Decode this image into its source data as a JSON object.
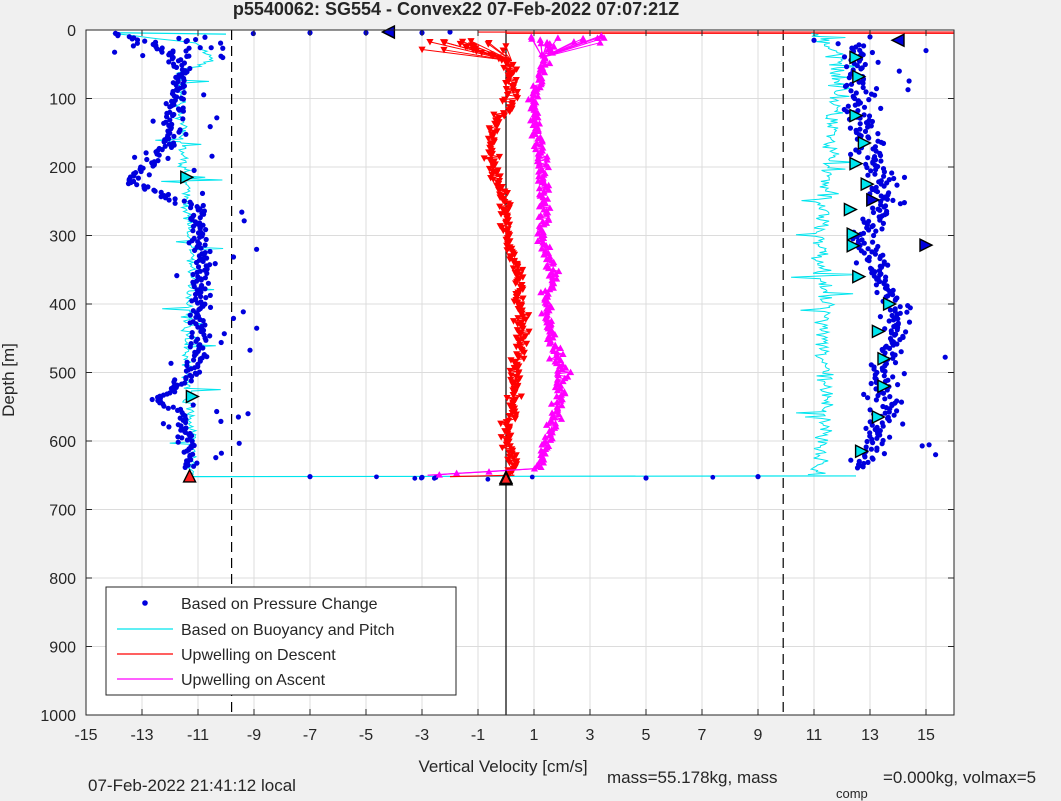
{
  "figure": {
    "title": "p5540062: SG554 - Convex22 07-Feb-2022 07:07:21Z",
    "footer_left": "07-Feb-2022 21:41:12 local",
    "footer_right_part1": "mass=55.178kg, mass",
    "footer_right_sub": "comp",
    "footer_right_part2": "=0.000kg, volmax=5"
  },
  "colors": {
    "pressure": "#0000dd",
    "buoyancy": "#00e5ee",
    "descent": "#ff0000",
    "ascent": "#ff00ff",
    "grid": "#dcdcdc",
    "axes_bg": "#ffffff",
    "figure_bg": "#f0f0f0"
  },
  "chart_data": {
    "type": "scatter",
    "title": "p5540062: SG554 - Convex22 07-Feb-2022 07:07:21Z",
    "xlabel": "Vertical Velocity [cm/s]",
    "ylabel": "Depth [m]",
    "xlim": [
      -15,
      16
    ],
    "ylim": [
      0,
      1000
    ],
    "y_reversed": true,
    "grid": true,
    "xticks": [
      -15,
      -13,
      -11,
      -9,
      -7,
      -5,
      -3,
      -1,
      1,
      3,
      5,
      7,
      9,
      11,
      13,
      15
    ],
    "yticks": [
      0,
      100,
      200,
      300,
      400,
      500,
      600,
      700,
      800,
      900,
      1000
    ],
    "legend": {
      "placement": "bottom-left",
      "entries": [
        "Based on Pressure Change",
        "Based on Buoyancy and Pitch",
        "Upwelling on Descent",
        "Upwelling on Ascent"
      ]
    },
    "reference_lines": {
      "dashed_x": [
        -9.8,
        9.9
      ],
      "solid_x": [
        0
      ]
    },
    "series": [
      {
        "name": "Based on Pressure Change",
        "style": "dots",
        "descent_points": [
          [
            -14,
            5
          ],
          [
            -12,
            30
          ],
          [
            -11.5,
            60
          ],
          [
            -11.8,
            100
          ],
          [
            -12,
            150
          ],
          [
            -12.2,
            180
          ],
          [
            -13.5,
            220
          ],
          [
            -11,
            260
          ],
          [
            -11,
            300
          ],
          [
            -10.9,
            350
          ],
          [
            -11,
            400
          ],
          [
            -10.9,
            450
          ],
          [
            -11.1,
            500
          ],
          [
            -12.5,
            540
          ],
          [
            -11.5,
            560
          ],
          [
            -11.4,
            600
          ],
          [
            -11.3,
            640
          ]
        ],
        "ascent_points": [
          [
            12.5,
            20
          ],
          [
            12.6,
            60
          ],
          [
            12.6,
            100
          ],
          [
            12.8,
            150
          ],
          [
            13.2,
            200
          ],
          [
            13.6,
            250
          ],
          [
            12.8,
            300
          ],
          [
            13.2,
            350
          ],
          [
            13.8,
            400
          ],
          [
            13.8,
            450
          ],
          [
            13.4,
            500
          ],
          [
            13.5,
            550
          ],
          [
            13.2,
            600
          ],
          [
            12.8,
            640
          ]
        ],
        "bottom_points": [
          [
            -7,
            652
          ],
          [
            -3,
            653
          ],
          [
            0,
            655
          ],
          [
            5,
            654
          ],
          [
            9,
            652
          ]
        ]
      },
      {
        "name": "Based on Buoyancy and Pitch",
        "style": "line",
        "descent_points": [
          [
            -14,
            5
          ],
          [
            -11,
            20
          ],
          [
            -10.5,
            45
          ],
          [
            -11.6,
            60
          ],
          [
            -11.6,
            100
          ],
          [
            -11.6,
            150
          ],
          [
            -11.5,
            200
          ],
          [
            -11.4,
            250
          ],
          [
            -11.3,
            300
          ],
          [
            -11.2,
            350
          ],
          [
            -11.3,
            400
          ],
          [
            -11.4,
            450
          ],
          [
            -11.4,
            500
          ],
          [
            -11.3,
            550
          ],
          [
            -11.2,
            600
          ],
          [
            -11.2,
            650
          ]
        ],
        "ascent_points": [
          [
            11,
            650
          ],
          [
            11.4,
            600
          ],
          [
            11.4,
            550
          ],
          [
            11.3,
            500
          ],
          [
            11.4,
            450
          ],
          [
            11.4,
            400
          ],
          [
            11.3,
            350
          ],
          [
            11.2,
            300
          ],
          [
            11.3,
            250
          ],
          [
            11.5,
            200
          ],
          [
            11.6,
            150
          ],
          [
            11.8,
            100
          ],
          [
            12,
            60
          ],
          [
            11.5,
            20
          ],
          [
            11,
            5
          ]
        ],
        "bottom_points": [
          [
            -11.2,
            652
          ],
          [
            12.5,
            651
          ]
        ]
      },
      {
        "name": "Upwelling on Descent",
        "style": "line-triangle-down",
        "points": [
          [
            -1.5,
            20
          ],
          [
            0.2,
            50
          ],
          [
            0.2,
            100
          ],
          [
            -0.5,
            150
          ],
          [
            -0.5,
            200
          ],
          [
            0,
            250
          ],
          [
            0,
            300
          ],
          [
            0.4,
            350
          ],
          [
            0.5,
            400
          ],
          [
            0.6,
            450
          ],
          [
            0.3,
            500
          ],
          [
            0.2,
            550
          ],
          [
            0,
            600
          ],
          [
            0.3,
            640
          ],
          [
            0,
            650
          ]
        ]
      },
      {
        "name": "Upwelling on Ascent",
        "style": "line-triangle-up",
        "points": [
          [
            -2.8,
            650
          ],
          [
            1.2,
            640
          ],
          [
            1.5,
            600
          ],
          [
            1.9,
            550
          ],
          [
            2,
            500
          ],
          [
            1.6,
            450
          ],
          [
            1.4,
            400
          ],
          [
            1.7,
            350
          ],
          [
            1.3,
            300
          ],
          [
            1.4,
            250
          ],
          [
            1.3,
            200
          ],
          [
            1.1,
            150
          ],
          [
            1,
            100
          ],
          [
            1.3,
            60
          ],
          [
            1.5,
            20
          ]
        ]
      }
    ],
    "markers": {
      "red_triangle_up": [
        [
          -11.3,
          651
        ],
        [
          0,
          653
        ]
      ],
      "black_triangle_up": [
        [
          0,
          655
        ]
      ],
      "cyan_triangles": [
        [
          -11.4,
          215
        ],
        [
          -11.2,
          535
        ],
        [
          12.5,
          40
        ],
        [
          12.6,
          68
        ],
        [
          12.5,
          125
        ],
        [
          12.8,
          165
        ],
        [
          12.5,
          195
        ],
        [
          12.9,
          225
        ],
        [
          12.3,
          262
        ],
        [
          12.4,
          298
        ],
        [
          12.4,
          315
        ],
        [
          12.6,
          360
        ],
        [
          13.7,
          400
        ],
        [
          13.3,
          440
        ],
        [
          13.5,
          480
        ],
        [
          13.5,
          520
        ],
        [
          13.3,
          565
        ],
        [
          12.7,
          615
        ]
      ],
      "blue_triangles": [
        [
          -4.2,
          3
        ],
        [
          14,
          15
        ],
        [
          13.1,
          248
        ],
        [
          15,
          314
        ]
      ]
    }
  }
}
